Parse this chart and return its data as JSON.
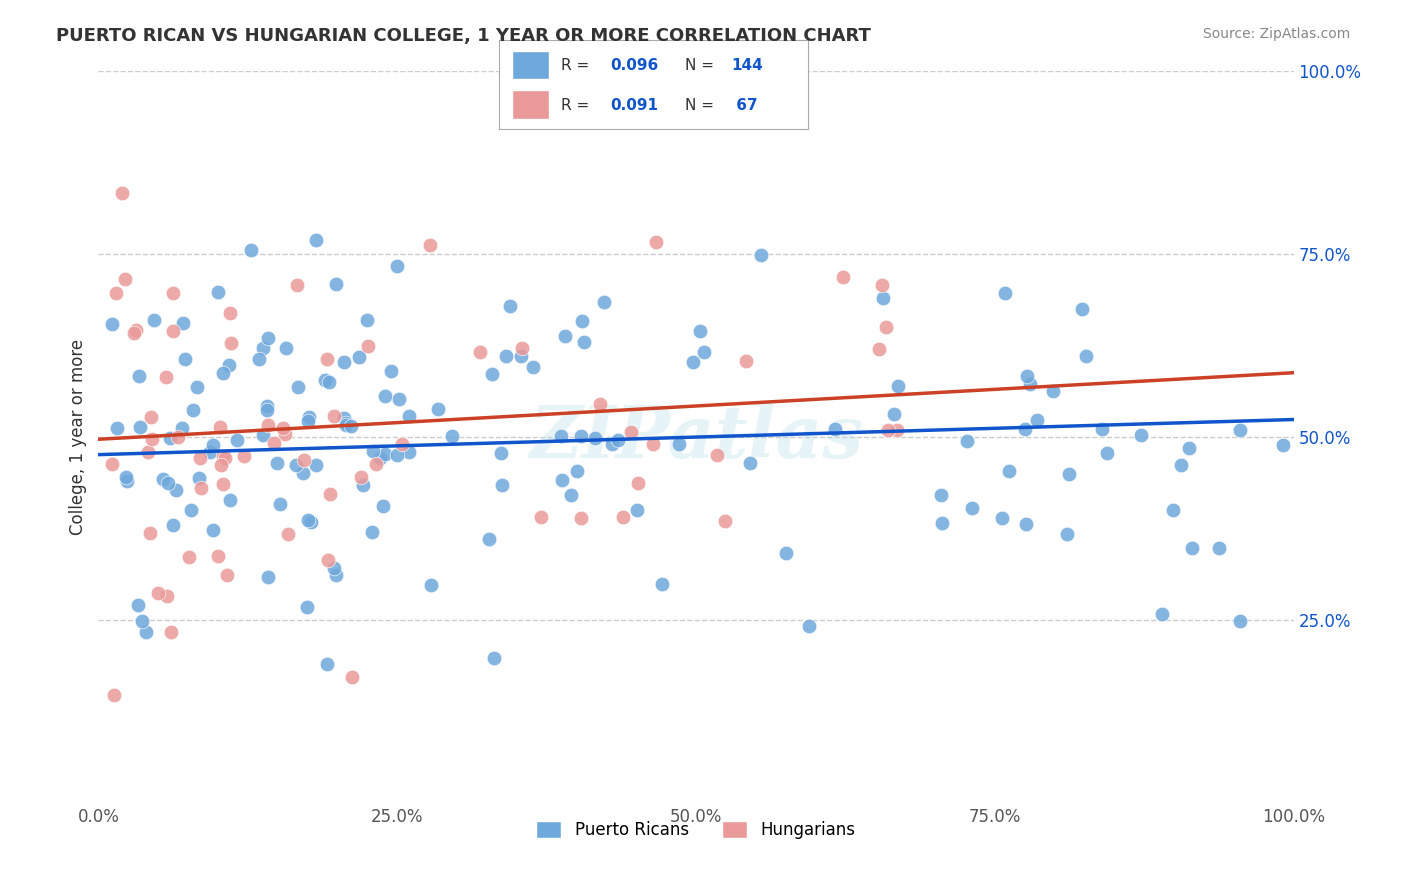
{
  "title": "PUERTO RICAN VS HUNGARIAN COLLEGE, 1 YEAR OR MORE CORRELATION CHART",
  "source": "Source: ZipAtlas.com",
  "ylabel": "College, 1 year or more",
  "xlim": [
    0.0,
    1.0
  ],
  "ylim": [
    0.0,
    1.0
  ],
  "x_tick_labels": [
    "0.0%",
    "25.0%",
    "50.0%",
    "75.0%",
    "100.0%"
  ],
  "x_tick_vals": [
    0.0,
    0.25,
    0.5,
    0.75,
    1.0
  ],
  "y_tick_labels": [
    "25.0%",
    "50.0%",
    "75.0%",
    "100.0%"
  ],
  "y_tick_vals": [
    0.25,
    0.5,
    0.75,
    1.0
  ],
  "blue_color": "#6fa8dc",
  "pink_color": "#ea9999",
  "blue_line_color": "#1155cc",
  "pink_line_color": "#cc4125",
  "watermark": "ZIPatlas",
  "blue_r": 0.096,
  "blue_n": 144,
  "pink_r": 0.091,
  "pink_n": 67,
  "blue_intercept": 0.476,
  "blue_slope": 0.048,
  "pink_intercept": 0.497,
  "pink_slope": 0.091,
  "background_color": "#ffffff",
  "grid_color": "#cccccc"
}
